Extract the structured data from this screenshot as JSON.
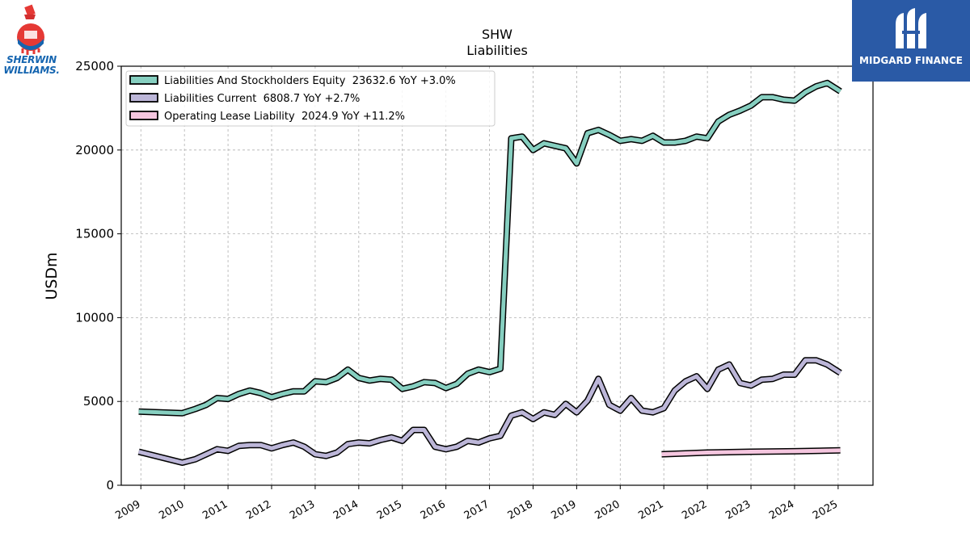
{
  "logos": {
    "left_brand_line1": "SHERWIN",
    "left_brand_line2": "WILLIAMS.",
    "right_brand": "MIDGARD FINANCE"
  },
  "chart_data": {
    "type": "line",
    "title": "SHW",
    "subtitle": "Liabilities",
    "ylabel": "USDm",
    "xlabel": "",
    "ylim": [
      0,
      25000
    ],
    "xlim": [
      2008.55,
      2025.8
    ],
    "yticks": [
      0,
      5000,
      10000,
      15000,
      20000,
      25000
    ],
    "xticks": [
      "2009",
      "2010",
      "2011",
      "2012",
      "2013",
      "2014",
      "2015",
      "2016",
      "2017",
      "2018",
      "2019",
      "2020",
      "2021",
      "2022",
      "2023",
      "2024",
      "2025"
    ],
    "grid": true,
    "legend_position": "top-left",
    "series": [
      {
        "name": "Liabilities And Stockholders Equity",
        "legend": "Liabilities And Stockholders Equity  23632.6 YoY +3.0%",
        "color": "#86cfc0",
        "points": [
          [
            2008.95,
            4400
          ],
          [
            2009.95,
            4300
          ],
          [
            2010.25,
            4550
          ],
          [
            2010.5,
            4800
          ],
          [
            2010.75,
            5200
          ],
          [
            2011.0,
            5150
          ],
          [
            2011.25,
            5450
          ],
          [
            2011.5,
            5650
          ],
          [
            2011.75,
            5500
          ],
          [
            2012.0,
            5250
          ],
          [
            2012.25,
            5450
          ],
          [
            2012.5,
            5600
          ],
          [
            2012.75,
            5600
          ],
          [
            2013.0,
            6200
          ],
          [
            2013.25,
            6150
          ],
          [
            2013.5,
            6400
          ],
          [
            2013.75,
            6900
          ],
          [
            2014.0,
            6400
          ],
          [
            2014.25,
            6250
          ],
          [
            2014.5,
            6350
          ],
          [
            2014.75,
            6300
          ],
          [
            2015.0,
            5750
          ],
          [
            2015.25,
            5900
          ],
          [
            2015.5,
            6150
          ],
          [
            2015.75,
            6100
          ],
          [
            2016.0,
            5800
          ],
          [
            2016.25,
            6050
          ],
          [
            2016.5,
            6650
          ],
          [
            2016.75,
            6900
          ],
          [
            2017.0,
            6750
          ],
          [
            2017.25,
            6950
          ],
          [
            2017.5,
            20700
          ],
          [
            2017.75,
            20800
          ],
          [
            2018.0,
            20000
          ],
          [
            2018.25,
            20400
          ],
          [
            2018.5,
            20250
          ],
          [
            2018.75,
            20100
          ],
          [
            2019.0,
            19200
          ],
          [
            2019.25,
            21000
          ],
          [
            2019.5,
            21200
          ],
          [
            2019.75,
            20900
          ],
          [
            2020.0,
            20550
          ],
          [
            2020.25,
            20650
          ],
          [
            2020.5,
            20550
          ],
          [
            2020.75,
            20850
          ],
          [
            2021.0,
            20450
          ],
          [
            2021.25,
            20450
          ],
          [
            2021.5,
            20550
          ],
          [
            2021.75,
            20800
          ],
          [
            2022.0,
            20700
          ],
          [
            2022.25,
            21700
          ],
          [
            2022.5,
            22100
          ],
          [
            2022.75,
            22350
          ],
          [
            2023.0,
            22650
          ],
          [
            2023.25,
            23150
          ],
          [
            2023.5,
            23150
          ],
          [
            2023.75,
            23000
          ],
          [
            2024.0,
            22950
          ],
          [
            2024.25,
            23450
          ],
          [
            2024.5,
            23800
          ],
          [
            2024.75,
            24000
          ],
          [
            2025.05,
            23500
          ]
        ]
      },
      {
        "name": "Liabilities Current",
        "legend": "Liabilities Current  6808.7 YoY +2.7%",
        "color": "#bcb6d8",
        "points": [
          [
            2008.95,
            2000
          ],
          [
            2009.95,
            1350
          ],
          [
            2010.25,
            1550
          ],
          [
            2010.5,
            1850
          ],
          [
            2010.75,
            2150
          ],
          [
            2011.0,
            2050
          ],
          [
            2011.25,
            2350
          ],
          [
            2011.5,
            2400
          ],
          [
            2011.75,
            2400
          ],
          [
            2012.0,
            2200
          ],
          [
            2012.25,
            2400
          ],
          [
            2012.5,
            2550
          ],
          [
            2012.75,
            2300
          ],
          [
            2013.0,
            1850
          ],
          [
            2013.25,
            1750
          ],
          [
            2013.5,
            1950
          ],
          [
            2013.75,
            2450
          ],
          [
            2014.0,
            2550
          ],
          [
            2014.25,
            2500
          ],
          [
            2014.5,
            2700
          ],
          [
            2014.75,
            2850
          ],
          [
            2015.0,
            2650
          ],
          [
            2015.25,
            3300
          ],
          [
            2015.5,
            3300
          ],
          [
            2015.75,
            2300
          ],
          [
            2016.0,
            2150
          ],
          [
            2016.25,
            2300
          ],
          [
            2016.5,
            2650
          ],
          [
            2016.75,
            2550
          ],
          [
            2017.0,
            2800
          ],
          [
            2017.25,
            2950
          ],
          [
            2017.5,
            4150
          ],
          [
            2017.75,
            4350
          ],
          [
            2018.0,
            3950
          ],
          [
            2018.25,
            4350
          ],
          [
            2018.5,
            4200
          ],
          [
            2018.75,
            4850
          ],
          [
            2019.0,
            4350
          ],
          [
            2019.25,
            5050
          ],
          [
            2019.5,
            6350
          ],
          [
            2019.75,
            4800
          ],
          [
            2020.0,
            4450
          ],
          [
            2020.25,
            5200
          ],
          [
            2020.5,
            4450
          ],
          [
            2020.75,
            4350
          ],
          [
            2021.0,
            4600
          ],
          [
            2021.25,
            5650
          ],
          [
            2021.5,
            6200
          ],
          [
            2021.75,
            6500
          ],
          [
            2022.0,
            5750
          ],
          [
            2022.25,
            6900
          ],
          [
            2022.5,
            7200
          ],
          [
            2022.75,
            6100
          ],
          [
            2023.0,
            5950
          ],
          [
            2023.25,
            6300
          ],
          [
            2023.5,
            6350
          ],
          [
            2023.75,
            6600
          ],
          [
            2024.0,
            6600
          ],
          [
            2024.25,
            7450
          ],
          [
            2024.5,
            7450
          ],
          [
            2024.75,
            7200
          ],
          [
            2025.05,
            6700
          ]
        ]
      },
      {
        "name": "Operating Lease Liability",
        "legend": "Operating Lease Liability  2024.9 YoY +11.2%",
        "color": "#f5c6df",
        "points": [
          [
            2020.95,
            1850
          ],
          [
            2022.0,
            1950
          ],
          [
            2023.0,
            2000
          ],
          [
            2024.0,
            2030
          ],
          [
            2025.05,
            2080
          ]
        ]
      }
    ]
  }
}
